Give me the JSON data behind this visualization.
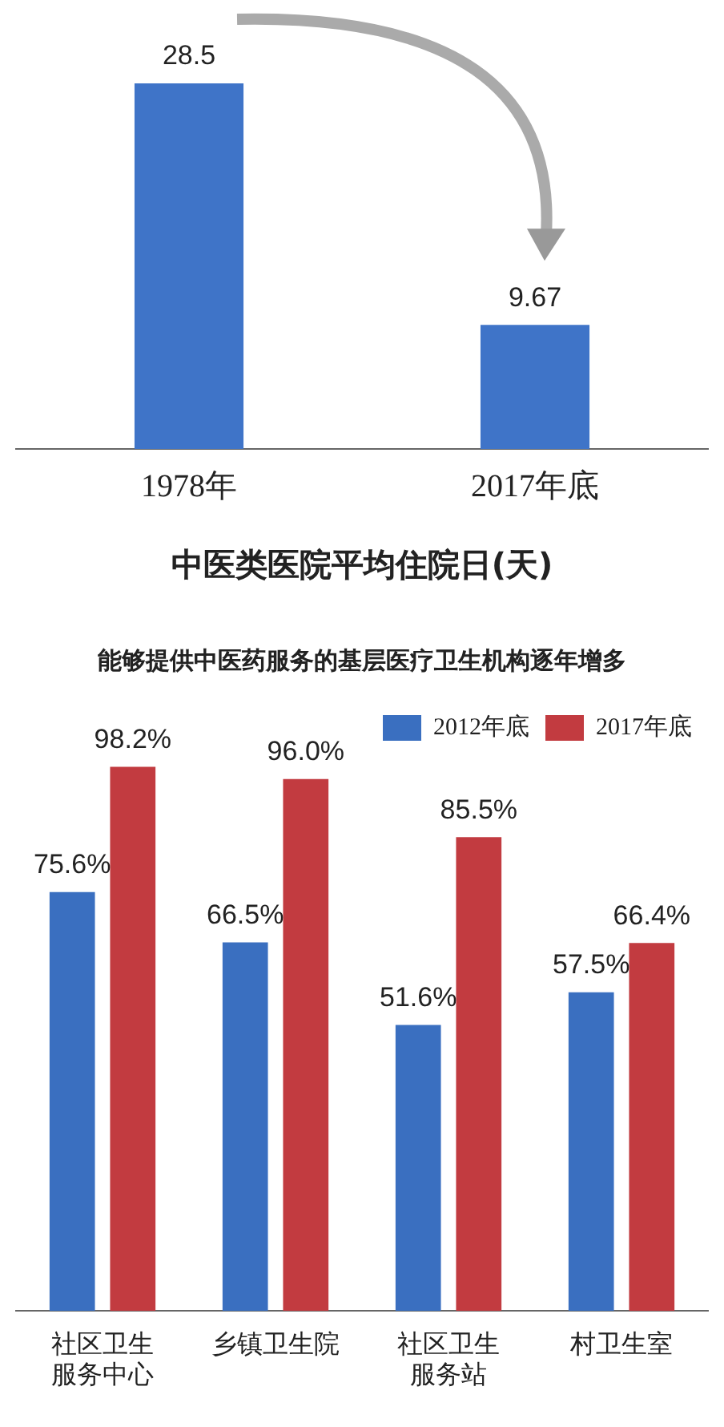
{
  "chart_data": [
    {
      "type": "bar",
      "title": "中医类医院平均住院日(天)",
      "categories": [
        "1978年",
        "2017年底"
      ],
      "values": [
        28.5,
        9.67
      ],
      "color": "#3f74c8",
      "data_labels": true
    },
    {
      "type": "bar",
      "title": "能够提供中医药服务的基层医疗卫生机构逐年增多",
      "categories": [
        "社区卫生服务中心",
        "乡镇卫生院",
        "社区卫生服务站",
        "村卫生室"
      ],
      "legend": "top right",
      "series": [
        {
          "name": "2012年底",
          "color": "#3a6fc0",
          "values": [
            75.6,
            66.5,
            51.6,
            57.5
          ],
          "value_labels": [
            "75.6%",
            "66.5%",
            "51.6%",
            "57.5%"
          ]
        },
        {
          "name": "2017年底",
          "color": "#c23b40",
          "values": [
            98.2,
            96.0,
            85.5,
            66.4
          ],
          "value_labels": [
            "98.2%",
            "96.0%",
            "85.5%",
            "66.4%"
          ]
        }
      ]
    }
  ]
}
